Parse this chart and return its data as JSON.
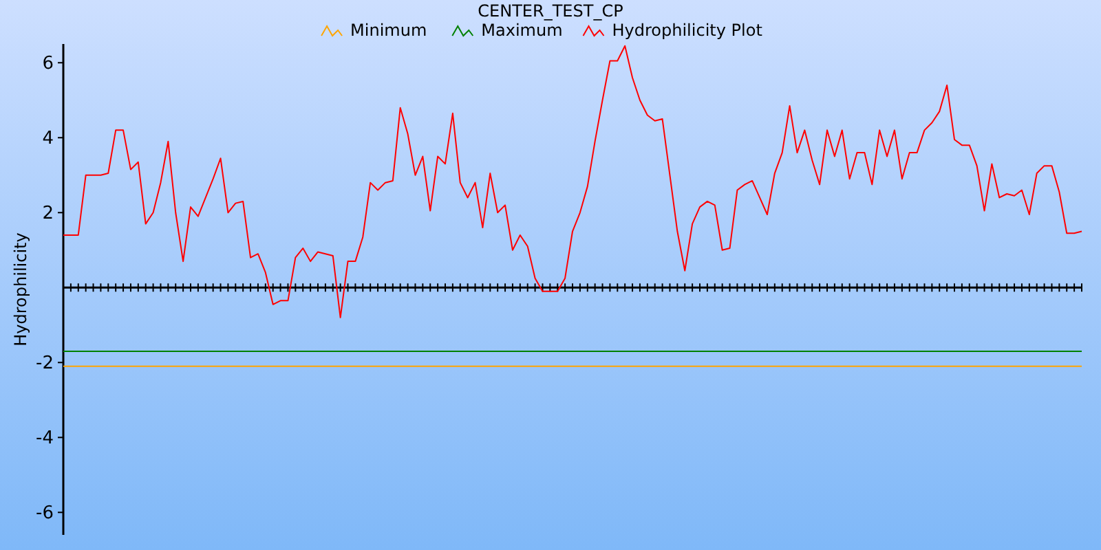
{
  "chart_data": {
    "type": "line",
    "title": "CENTER_TEST_CP",
    "ylabel": "Hydrophilicity",
    "categories": [
      null,
      null,
      null,
      null,
      null,
      null,
      null,
      null,
      null,
      null,
      null,
      null,
      null,
      null,
      null,
      null,
      null,
      null,
      null,
      null,
      null,
      null,
      null,
      null,
      null,
      null,
      null,
      null,
      null,
      null,
      null,
      null,
      null,
      null,
      null,
      null,
      null,
      null,
      null,
      null,
      null,
      null,
      null,
      null,
      null,
      null,
      null,
      null,
      null,
      null,
      null,
      null,
      null,
      null,
      null,
      null,
      null,
      null,
      null,
      null,
      null,
      null,
      null,
      null,
      null,
      null,
      null,
      null,
      null,
      null,
      null,
      null,
      null,
      null,
      null,
      null,
      null,
      null,
      null,
      null,
      null,
      null,
      null,
      null,
      null,
      null,
      null,
      null,
      null,
      null,
      null,
      null,
      null,
      null,
      null,
      null,
      null,
      null,
      null,
      null,
      null,
      null,
      null,
      null,
      null,
      null,
      null,
      null,
      null,
      null,
      null,
      null,
      null,
      null,
      null,
      null,
      null,
      null,
      null,
      null,
      null,
      null,
      null,
      null,
      null,
      null,
      null,
      null,
      null,
      null,
      null,
      null,
      null,
      null,
      null,
      null,
      null
    ],
    "series": [
      {
        "name": "Minimum",
        "color": "#ffa500",
        "values": [
          -2.1,
          -2.1,
          -2.1,
          -2.1,
          -2.1,
          -2.1,
          -2.1,
          -2.1,
          -2.1,
          -2.1,
          -2.1,
          -2.1,
          -2.1,
          -2.1,
          -2.1,
          -2.1,
          -2.1,
          -2.1,
          -2.1,
          -2.1,
          -2.1,
          -2.1,
          -2.1,
          -2.1,
          -2.1,
          -2.1,
          -2.1,
          -2.1,
          -2.1,
          -2.1,
          -2.1,
          -2.1,
          -2.1,
          -2.1,
          -2.1,
          -2.1,
          -2.1,
          -2.1,
          -2.1,
          -2.1,
          -2.1,
          -2.1,
          -2.1,
          -2.1,
          -2.1,
          -2.1,
          -2.1,
          -2.1,
          -2.1,
          -2.1,
          -2.1,
          -2.1,
          -2.1,
          -2.1,
          -2.1,
          -2.1,
          -2.1,
          -2.1,
          -2.1,
          -2.1,
          -2.1,
          -2.1,
          -2.1,
          -2.1,
          -2.1,
          -2.1,
          -2.1,
          -2.1,
          -2.1,
          -2.1,
          -2.1,
          -2.1,
          -2.1,
          -2.1,
          -2.1,
          -2.1,
          -2.1,
          -2.1,
          -2.1,
          -2.1,
          -2.1,
          -2.1,
          -2.1,
          -2.1,
          -2.1,
          -2.1,
          -2.1,
          -2.1,
          -2.1,
          -2.1,
          -2.1,
          -2.1,
          -2.1,
          -2.1,
          -2.1,
          -2.1,
          -2.1,
          -2.1,
          -2.1,
          -2.1,
          -2.1,
          -2.1,
          -2.1,
          -2.1,
          -2.1,
          -2.1,
          -2.1,
          -2.1,
          -2.1,
          -2.1,
          -2.1,
          -2.1,
          -2.1,
          -2.1,
          -2.1,
          -2.1,
          -2.1,
          -2.1,
          -2.1,
          -2.1,
          -2.1,
          -2.1,
          -2.1,
          -2.1,
          -2.1,
          -2.1,
          -2.1,
          -2.1,
          -2.1,
          -2.1,
          -2.1,
          -2.1,
          -2.1,
          -2.1,
          -2.1,
          -2.1,
          -2.1
        ]
      },
      {
        "name": "Maximum",
        "color": "#008000",
        "values": [
          -1.7,
          -1.7,
          -1.7,
          -1.7,
          -1.7,
          -1.7,
          -1.7,
          -1.7,
          -1.7,
          -1.7,
          -1.7,
          -1.7,
          -1.7,
          -1.7,
          -1.7,
          -1.7,
          -1.7,
          -1.7,
          -1.7,
          -1.7,
          -1.7,
          -1.7,
          -1.7,
          -1.7,
          -1.7,
          -1.7,
          -1.7,
          -1.7,
          -1.7,
          -1.7,
          -1.7,
          -1.7,
          -1.7,
          -1.7,
          -1.7,
          -1.7,
          -1.7,
          -1.7,
          -1.7,
          -1.7,
          -1.7,
          -1.7,
          -1.7,
          -1.7,
          -1.7,
          -1.7,
          -1.7,
          -1.7,
          -1.7,
          -1.7,
          -1.7,
          -1.7,
          -1.7,
          -1.7,
          -1.7,
          -1.7,
          -1.7,
          -1.7,
          -1.7,
          -1.7,
          -1.7,
          -1.7,
          -1.7,
          -1.7,
          -1.7,
          -1.7,
          -1.7,
          -1.7,
          -1.7,
          -1.7,
          -1.7,
          -1.7,
          -1.7,
          -1.7,
          -1.7,
          -1.7,
          -1.7,
          -1.7,
          -1.7,
          -1.7,
          -1.7,
          -1.7,
          -1.7,
          -1.7,
          -1.7,
          -1.7,
          -1.7,
          -1.7,
          -1.7,
          -1.7,
          -1.7,
          -1.7,
          -1.7,
          -1.7,
          -1.7,
          -1.7,
          -1.7,
          -1.7,
          -1.7,
          -1.7,
          -1.7,
          -1.7,
          -1.7,
          -1.7,
          -1.7,
          -1.7,
          -1.7,
          -1.7,
          -1.7,
          -1.7,
          -1.7,
          -1.7,
          -1.7,
          -1.7,
          -1.7,
          -1.7,
          -1.7,
          -1.7,
          -1.7,
          -1.7,
          -1.7,
          -1.7,
          -1.7,
          -1.7,
          -1.7,
          -1.7,
          -1.7,
          -1.7,
          -1.7,
          -1.7,
          -1.7,
          -1.7,
          -1.7,
          -1.7,
          -1.7,
          -1.7,
          -1.7
        ]
      },
      {
        "name": "Hydrophilicity Plot",
        "color": "#ff0000",
        "values": [
          1.4,
          1.4,
          1.4,
          3.0,
          3.0,
          3.0,
          3.05,
          4.2,
          4.2,
          3.15,
          3.35,
          1.7,
          2.0,
          2.8,
          3.9,
          2.0,
          0.7,
          2.15,
          1.9,
          2.4,
          2.9,
          3.45,
          2.0,
          2.25,
          2.3,
          0.8,
          0.9,
          0.4,
          -0.45,
          -0.35,
          -0.35,
          0.8,
          1.05,
          0.7,
          0.95,
          0.9,
          0.85,
          -0.8,
          0.7,
          0.7,
          1.35,
          2.8,
          2.6,
          2.8,
          2.85,
          4.8,
          4.1,
          3.0,
          3.5,
          2.05,
          3.5,
          3.3,
          4.65,
          2.8,
          2.4,
          2.8,
          1.6,
          3.05,
          2.0,
          2.2,
          1.0,
          1.4,
          1.1,
          0.25,
          -0.1,
          -0.1,
          -0.1,
          0.25,
          1.5,
          2.0,
          2.7,
          3.9,
          5.0,
          6.05,
          6.05,
          6.45,
          5.6,
          5.0,
          4.6,
          4.45,
          4.5,
          3.0,
          1.5,
          0.45,
          1.7,
          2.15,
          2.3,
          2.2,
          1.0,
          1.05,
          2.6,
          2.75,
          2.85,
          2.4,
          1.95,
          3.05,
          3.6,
          4.85,
          3.6,
          4.2,
          3.4,
          2.75,
          4.2,
          3.5,
          4.2,
          2.9,
          3.6,
          3.6,
          2.75,
          4.2,
          3.5,
          4.2,
          2.9,
          3.6,
          3.6,
          4.2,
          4.4,
          4.7,
          5.4,
          3.95,
          3.8,
          3.8,
          3.25,
          2.05,
          3.3,
          2.4,
          2.5,
          2.45,
          2.6,
          1.95,
          3.05,
          3.25,
          3.25,
          2.55,
          1.45,
          1.45,
          1.5
        ]
      }
    ],
    "ylim": [
      -6.6,
      6.5
    ],
    "yticks": [
      -6,
      -4,
      -2,
      2,
      4,
      6
    ],
    "tick_labels": "y",
    "legend": "top",
    "grid": false,
    "marker": "none",
    "line_style": "solid"
  }
}
